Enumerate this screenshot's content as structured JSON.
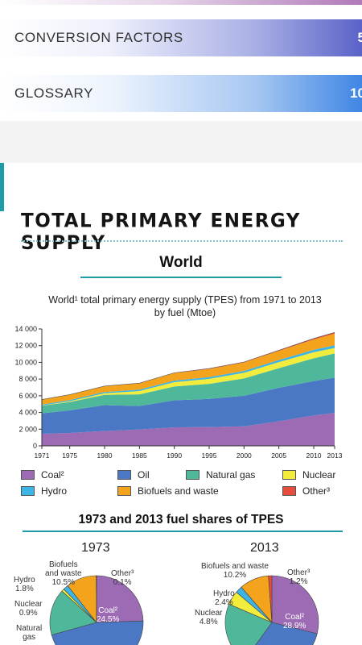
{
  "toc": [
    {
      "label": "CONVERSION FACTORS",
      "page": "5"
    },
    {
      "label": "GLOSSARY",
      "page": "10"
    }
  ],
  "section": {
    "title": "TOTAL PRIMARY ENERGY SUPPLY",
    "subtitle": "World"
  },
  "colors": {
    "coal": "#9c6bb4",
    "oil": "#4a78c4",
    "natural_gas": "#4fb89a",
    "nuclear": "#f2ec3c",
    "hydro": "#3cb4e6",
    "biofuels": "#f3a41c",
    "other": "#e74c3c",
    "accent": "#1f9ba8"
  },
  "chart_data": {
    "type": "area",
    "title_line1": "World¹ total primary energy supply (TPES) from 1971 to 2013",
    "title_line2": "by fuel (Mtoe)",
    "x": [
      1971,
      1975,
      1980,
      1985,
      1990,
      1995,
      2000,
      2005,
      2010,
      2013
    ],
    "x_tick_labels": [
      "1971",
      "1975",
      "1980",
      "1985",
      "1990",
      "1995",
      "2000",
      "2005",
      "2010",
      "2013"
    ],
    "y_ticks": [
      "0",
      "2 000",
      "4 000",
      "6 000",
      "8 000",
      "10 000",
      "12 000",
      "14 000"
    ],
    "ylim": [
      0,
      14000
    ],
    "series": [
      {
        "name": "Coal²",
        "key": "coal",
        "values": [
          1450,
          1550,
          1780,
          1970,
          2220,
          2250,
          2340,
          2950,
          3650,
          3950
        ]
      },
      {
        "name": "Oil",
        "key": "oil",
        "values": [
          2450,
          2700,
          3100,
          2800,
          3230,
          3370,
          3660,
          4000,
          4110,
          4220
        ]
      },
      {
        "name": "Natural gas",
        "key": "natural_gas",
        "values": [
          900,
          1000,
          1230,
          1400,
          1660,
          1800,
          2070,
          2360,
          2730,
          2900
        ]
      },
      {
        "name": "Nuclear",
        "key": "nuclear",
        "values": [
          30,
          100,
          190,
          390,
          520,
          600,
          680,
          720,
          720,
          650
        ]
      },
      {
        "name": "Hydro",
        "key": "hydro",
        "values": [
          110,
          130,
          150,
          170,
          180,
          210,
          220,
          250,
          290,
          330
        ]
      },
      {
        "name": "Biofuels and waste",
        "key": "biofuels",
        "values": [
          600,
          650,
          700,
          760,
          900,
          980,
          1010,
          1100,
          1250,
          1380
        ]
      },
      {
        "name": "Other³",
        "key": "other",
        "values": [
          10,
          10,
          15,
          20,
          40,
          50,
          60,
          70,
          110,
          150
        ]
      }
    ]
  },
  "legend": [
    {
      "label": "Coal²",
      "key": "coal"
    },
    {
      "label": "Oil",
      "key": "oil"
    },
    {
      "label": "Natural gas",
      "key": "natural_gas"
    },
    {
      "label": "Nuclear",
      "key": "nuclear"
    },
    {
      "label": "Hydro",
      "key": "hydro"
    },
    {
      "label": "Biofuels and waste",
      "key": "biofuels"
    },
    {
      "label": "Other³",
      "key": "other"
    }
  ],
  "pies": {
    "heading": "1973 and 2013 fuel shares of TPES",
    "charts": [
      {
        "year": "1973",
        "type": "pie",
        "slices": [
          {
            "key": "coal",
            "value": 24.5
          },
          {
            "key": "oil",
            "value": 46.2
          },
          {
            "key": "natural_gas",
            "value": 16.0
          },
          {
            "key": "nuclear",
            "value": 0.9
          },
          {
            "key": "hydro",
            "value": 1.8
          },
          {
            "key": "biofuels",
            "value": 10.5
          },
          {
            "key": "other",
            "value": 0.1
          }
        ],
        "labels": {
          "coal": "Coal²\n24.5%",
          "other": "Other³\n0.1%",
          "biofuels": "Biofuels\nand waste\n10.5%",
          "hydro": "Hydro\n1.8%",
          "nuclear": "Nuclear\n0.9%",
          "natural_gas": "Natural\ngas"
        }
      },
      {
        "year": "2013",
        "type": "pie",
        "slices": [
          {
            "key": "coal",
            "value": 28.9
          },
          {
            "key": "oil",
            "value": 31.1
          },
          {
            "key": "natural_gas",
            "value": 21.4
          },
          {
            "key": "nuclear",
            "value": 4.8
          },
          {
            "key": "hydro",
            "value": 2.4
          },
          {
            "key": "biofuels",
            "value": 10.2
          },
          {
            "key": "other",
            "value": 1.2
          }
        ],
        "labels": {
          "coal": "Coal²\n28.9%",
          "other": "Other³\n1.2%",
          "biofuels": "Biofuels and waste\n10.2%",
          "hydro": "Hydro\n2.4%",
          "nuclear": "Nuclear\n4.8%"
        }
      }
    ]
  }
}
